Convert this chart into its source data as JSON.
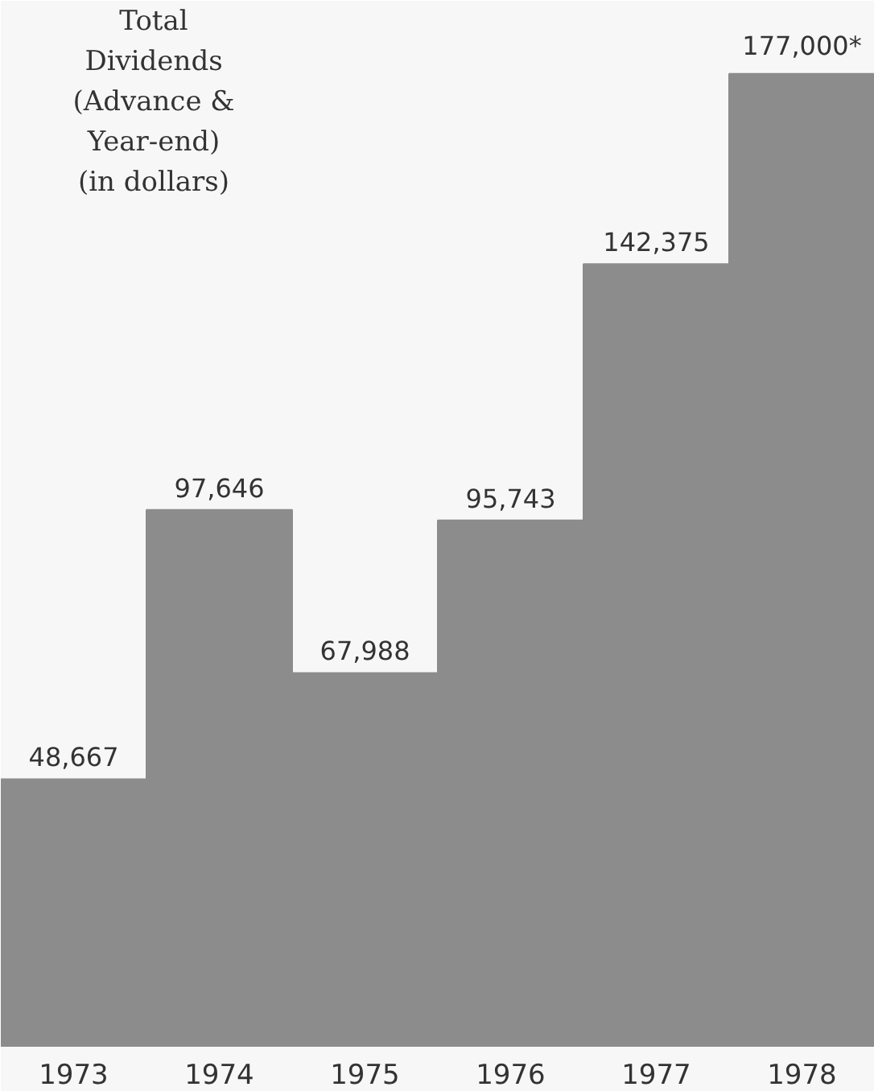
{
  "chart_data": {
    "type": "bar",
    "title": "Total Dividends (Advance & Year-end) (in dollars)",
    "categories": [
      "1973",
      "1974",
      "1975",
      "1976",
      "1977",
      "1978"
    ],
    "values": [
      48667,
      97646,
      67988,
      95743,
      142375,
      177000
    ],
    "value_labels": [
      "48,667",
      "97,646",
      "67,988",
      "95,743",
      "142,375",
      "177,000*"
    ],
    "color": "#8c8c8c",
    "grid": false
  }
}
